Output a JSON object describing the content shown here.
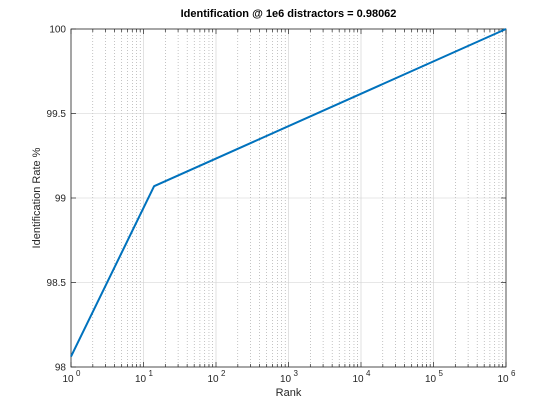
{
  "chart_data": {
    "type": "line",
    "title": "Identification @ 1e6 distractors = 0.98062",
    "xlabel": "Rank",
    "ylabel": "Identification Rate %",
    "x_scale": "log",
    "xlim": [
      1,
      1000000
    ],
    "ylim": [
      98,
      100
    ],
    "x_ticks": [
      1,
      10,
      100,
      1000,
      10000,
      100000,
      1000000
    ],
    "x_tick_base": "10",
    "x_tick_exponents": [
      "0",
      "1",
      "2",
      "3",
      "4",
      "5",
      "6"
    ],
    "y_ticks": [
      "98",
      "98.5",
      "99",
      "99.5",
      "100"
    ],
    "grid": true,
    "series_color": "#0072BD",
    "series": [
      {
        "x": [
          1,
          14,
          1000000
        ],
        "y": [
          98.062,
          99.07,
          100
        ]
      }
    ]
  }
}
